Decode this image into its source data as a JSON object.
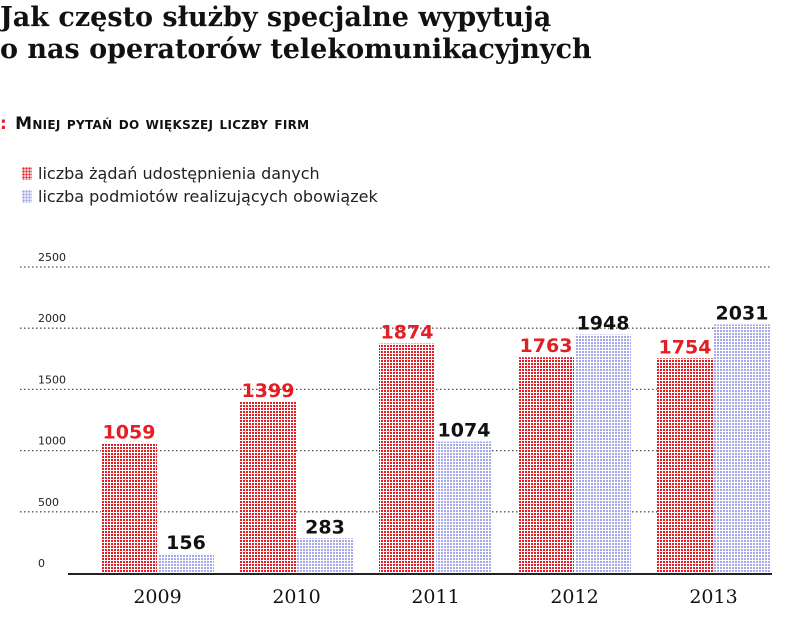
{
  "title_lines": [
    "Jak często służby specjalne wypytują",
    "o nas operatorów telekomunikacyjnych"
  ],
  "subtitle": "Mniej pytań do większej liczby firm",
  "colors": {
    "requests": "#e31e24",
    "entities": "#a6a9ea",
    "label_requests": "#e31e24",
    "label_entities": "#111111"
  },
  "chart_data": {
    "type": "bar",
    "categories": [
      "2009",
      "2010",
      "2011",
      "2012",
      "2013"
    ],
    "series": [
      {
        "name": "liczba żądań udostępnienia danych",
        "values": [
          1059,
          1399,
          1874,
          1763,
          1754
        ]
      },
      {
        "name": "liczba podmiotów realizujących obowiązek",
        "values": [
          156,
          283,
          1074,
          1948,
          2031
        ]
      }
    ],
    "y_ticks": [
      0,
      500,
      1000,
      1500,
      2000,
      2500
    ],
    "ylim": [
      0,
      2500
    ],
    "grid": true,
    "legend_position": "top-left"
  }
}
